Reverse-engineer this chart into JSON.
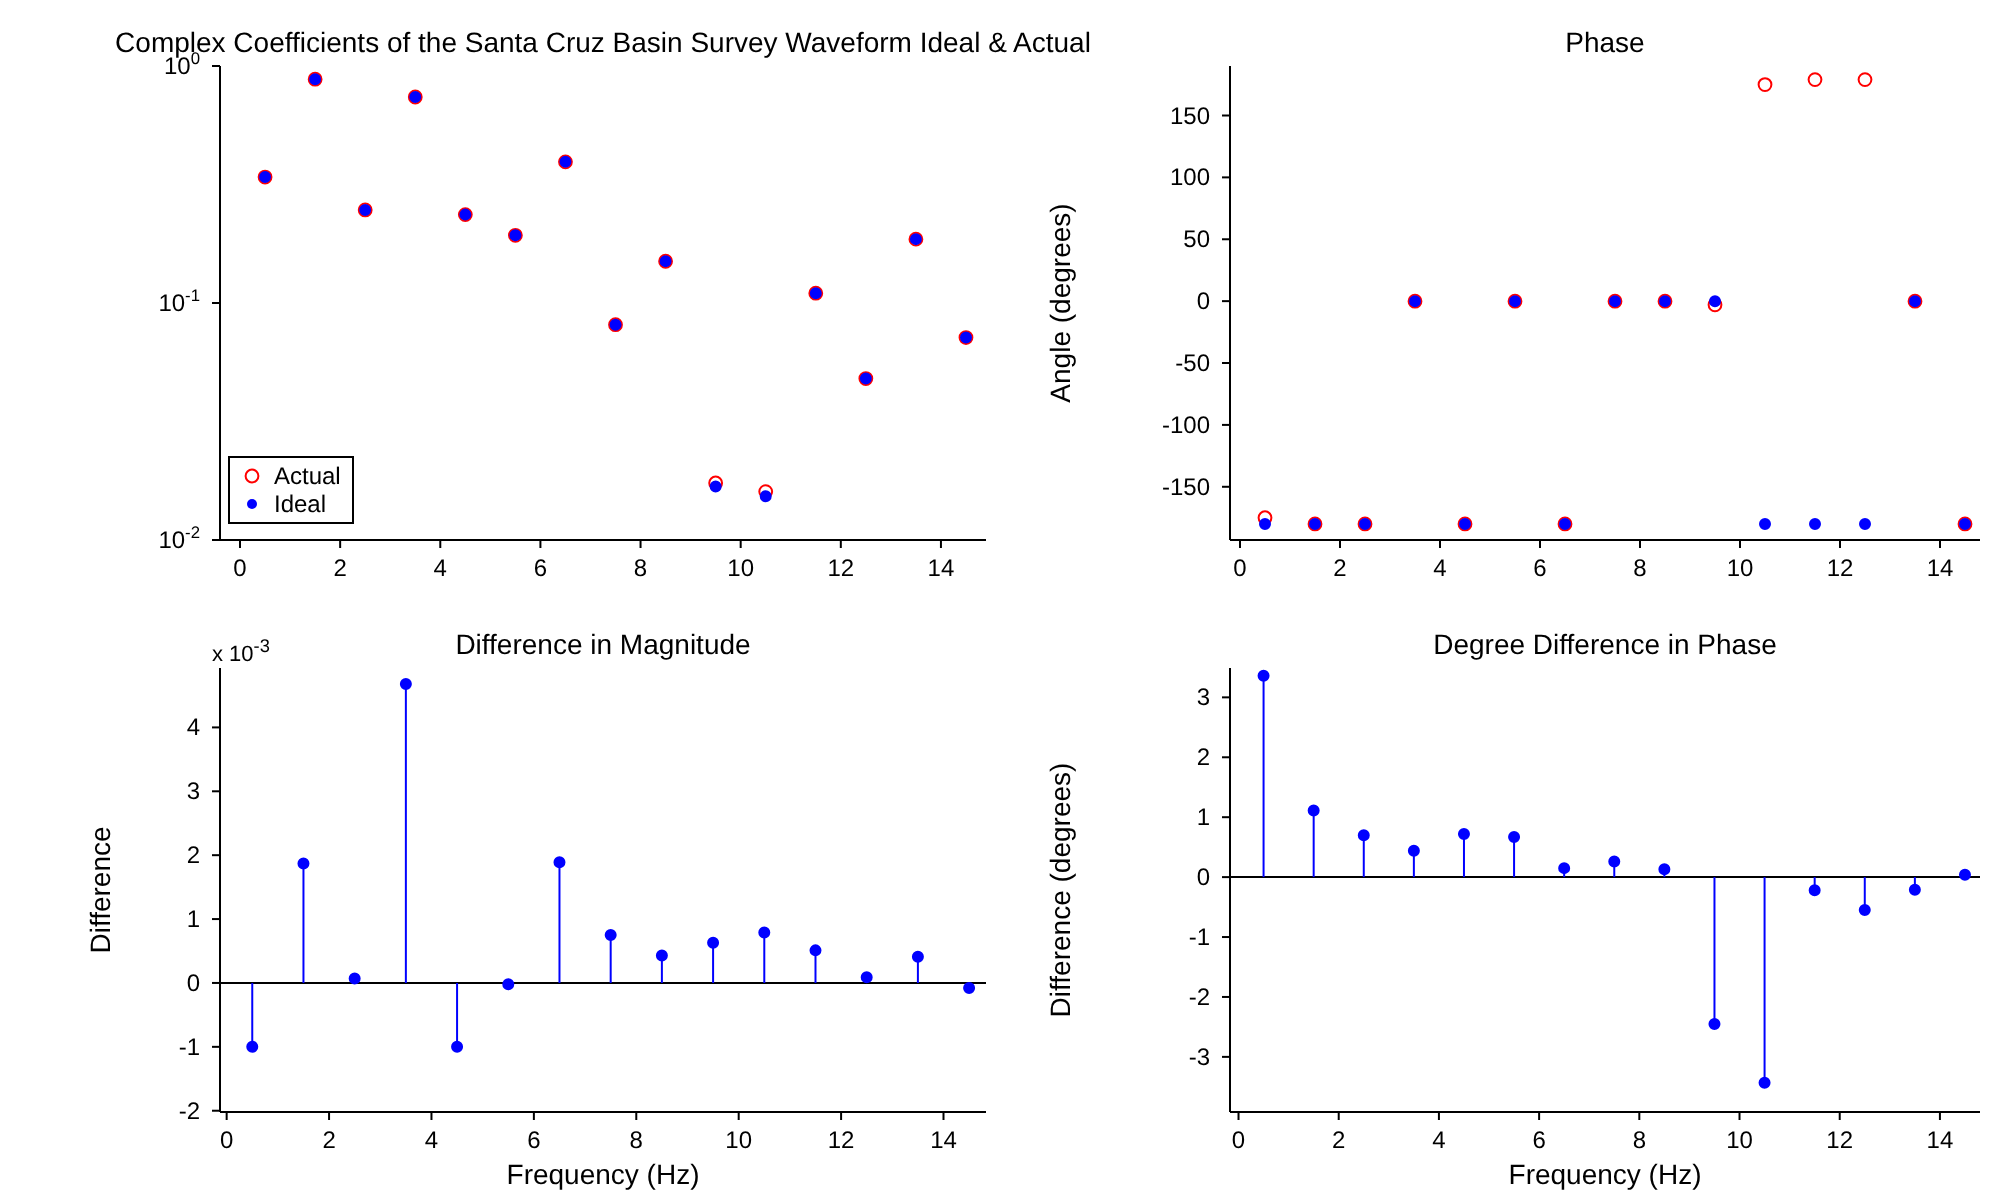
{
  "chart_data": [
    {
      "type": "scatter",
      "title": "Complex Coefficients of the Santa Cruz Basin Survey Waveform Ideal & Actual",
      "x": [
        0.5,
        1.5,
        2.5,
        3.5,
        4.5,
        5.5,
        6.5,
        7.5,
        8.5,
        9.5,
        10.5,
        11.5,
        12.5,
        13.5,
        14.5
      ],
      "series": [
        {
          "name": "Actual",
          "color": "#ff0000",
          "values": [
            0.34,
            0.88,
            0.247,
            0.74,
            0.236,
            0.193,
            0.394,
            0.081,
            0.15,
            0.0174,
            0.016,
            0.11,
            0.048,
            0.186,
            0.0715
          ]
        },
        {
          "name": "Ideal",
          "color": "#0000ff",
          "values": [
            0.34,
            0.88,
            0.247,
            0.74,
            0.236,
            0.193,
            0.394,
            0.081,
            0.15,
            0.0168,
            0.0153,
            0.11,
            0.048,
            0.186,
            0.0715
          ]
        }
      ],
      "log": "y",
      "ylim": [
        0.01,
        1
      ],
      "yticks": [
        {
          "value": 0.01,
          "label": "10$^{-2}$"
        },
        {
          "value": 0.1,
          "label": "10$^{-1}$"
        },
        {
          "value": 1,
          "label": "10$^{0}$"
        }
      ],
      "xlim": [
        -0.4,
        14.9
      ],
      "xticks": [
        0,
        2,
        4,
        6,
        8,
        10,
        12,
        14
      ],
      "marker": "circle",
      "legend": "bottom left"
    },
    {
      "type": "scatter",
      "title": "Phase",
      "ylabel": "Angle (degrees)",
      "x": [
        0.5,
        1.5,
        2.5,
        3.5,
        4.5,
        5.5,
        6.5,
        7.5,
        8.5,
        9.5,
        10.5,
        11.5,
        12.5,
        13.5,
        14.5
      ],
      "series": [
        {
          "color": "#ff0000",
          "values": [
            -175,
            -180,
            -180,
            0,
            -180,
            0,
            -180,
            0,
            0,
            -3,
            175,
            179,
            179,
            0,
            -180
          ]
        },
        {
          "color": "#0000ff",
          "values": [
            -180,
            -180,
            -180,
            0,
            -180,
            0,
            -180,
            0,
            0,
            0,
            -180,
            -180,
            -180,
            0,
            -180
          ]
        }
      ],
      "ylim": [
        -193,
        190
      ],
      "yticks": [
        -150,
        -100,
        -50,
        0,
        50,
        100,
        150
      ],
      "xlim": [
        -0.2,
        14.8
      ],
      "xticks": [
        0,
        2,
        4,
        6,
        8,
        10,
        12,
        14
      ],
      "marker": "circle"
    },
    {
      "type": "lollipop",
      "title": "Difference in Magnitude",
      "xlabel": "Frequency (Hz)",
      "ylabel": "Difference",
      "annotations": [
        "x 10$^{-3}$"
      ],
      "x": [
        0.5,
        1.5,
        2.5,
        3.5,
        4.5,
        5.5,
        6.5,
        7.5,
        8.5,
        9.5,
        10.5,
        11.5,
        12.5,
        13.5,
        14.5
      ],
      "values": [
        -1.0,
        1.87,
        0.07,
        4.68,
        -1.0,
        -0.02,
        1.89,
        0.75,
        0.43,
        0.63,
        0.79,
        0.51,
        0.09,
        0.41,
        -0.08
      ],
      "color": "#0000ff",
      "ylim": [
        -2.02,
        4.93
      ],
      "yticks": [
        -2,
        -1,
        0,
        1,
        2,
        3,
        4
      ],
      "xlim": [
        -0.13,
        14.83
      ],
      "xticks": [
        0,
        2,
        4,
        6,
        8,
        10,
        12,
        14
      ],
      "marker": "circle",
      "ref_lines": [
        {
          "axis": "y",
          "value": 0,
          "color": "#000000"
        }
      ]
    },
    {
      "type": "lollipop",
      "title": "Degree Difference in Phase",
      "xlabel": "Frequency (Hz)",
      "ylabel": "Difference (degrees)",
      "x": [
        0.5,
        1.5,
        2.5,
        3.5,
        4.5,
        5.5,
        6.5,
        7.5,
        8.5,
        9.5,
        10.5,
        11.5,
        12.5,
        13.5,
        14.5
      ],
      "values": [
        3.36,
        1.11,
        0.7,
        0.44,
        0.72,
        0.67,
        0.15,
        0.26,
        0.13,
        -2.45,
        -3.43,
        -0.22,
        -0.55,
        -0.21,
        0.04
      ],
      "color": "#0000ff",
      "ylim": [
        -3.92,
        3.49
      ],
      "yticks": [
        -3,
        -2,
        -1,
        0,
        1,
        2,
        3
      ],
      "xlim": [
        -0.17,
        14.8
      ],
      "xticks": [
        0,
        2,
        4,
        6,
        8,
        10,
        12,
        14
      ],
      "marker": "circle",
      "ref_lines": [
        {
          "axis": "y",
          "value": 0,
          "color": "#000000"
        }
      ]
    }
  ]
}
